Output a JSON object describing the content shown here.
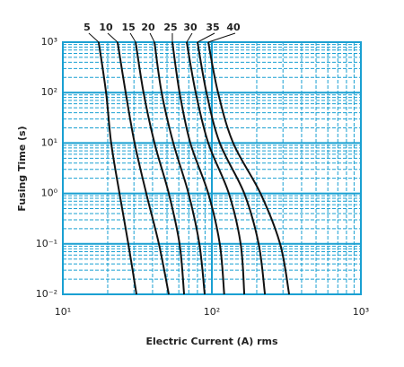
{
  "chart_data": {
    "type": "line",
    "x_label": "Electric Current (A) rms",
    "y_label": "Fusing Time (s)",
    "log_x": true,
    "log_y": true,
    "grid": true,
    "minor_grid": true,
    "grid_color": "#1aa0d2",
    "xlim": [
      10,
      1000
    ],
    "ylim": [
      0.01,
      1000
    ],
    "xticks": [
      {
        "value": 10,
        "label": "10¹"
      },
      {
        "value": 100,
        "label": "10²"
      },
      {
        "value": 1000,
        "label": "10³"
      }
    ],
    "yticks": [
      {
        "value": 0.01,
        "label": "10⁻²"
      },
      {
        "value": 0.1,
        "label": "10⁻¹"
      },
      {
        "value": 1,
        "label": "10⁰"
      },
      {
        "value": 10,
        "label": "10¹"
      },
      {
        "value": 100,
        "label": "10²"
      },
      {
        "value": 1000,
        "label": "10³"
      }
    ],
    "series": [
      {
        "name": "5",
        "color": "#111111",
        "x": [
          17.4,
          19.5,
          21.1,
          24.0,
          27.5,
          31.2
        ],
        "values": [
          1000,
          100,
          10,
          1,
          0.1,
          0.01
        ]
      },
      {
        "name": "10",
        "color": "#111111",
        "x": [
          23.3,
          26.4,
          30.3,
          36.3,
          44.1,
          51.4
        ],
        "values": [
          1000,
          100,
          10,
          1,
          0.1,
          0.01
        ]
      },
      {
        "name": "15",
        "color": "#111111",
        "x": [
          30.8,
          34.8,
          41.2,
          51.4,
          60.7,
          65.1
        ],
        "values": [
          1000,
          100,
          10,
          1,
          0.1,
          0.01
        ]
      },
      {
        "name": "20",
        "color": "#111111",
        "x": [
          41.2,
          46.0,
          55.1,
          69.7,
          82.4,
          89.5
        ],
        "values": [
          1000,
          100,
          10,
          1,
          0.1,
          0.01
        ]
      },
      {
        "name": "25",
        "color": "#111111",
        "x": [
          54.3,
          60.7,
          71.7,
          94.6,
          113,
          121
        ],
        "values": [
          1000,
          100,
          10,
          1,
          0.1,
          0.01
        ]
      },
      {
        "name": "30",
        "color": "#111111",
        "x": [
          67.8,
          77.9,
          94.6,
          130,
          156,
          165
        ],
        "values": [
          1000,
          100,
          10,
          1,
          0.1,
          0.01
        ]
      },
      {
        "name": "35",
        "color": "#111111",
        "x": [
          80.1,
          92.0,
          113,
          165,
          206,
          227
        ],
        "values": [
          1000,
          100,
          10,
          1,
          0.1,
          0.01
        ]
      },
      {
        "name": "40",
        "color": "#111111",
        "x": [
          94.6,
          110,
          139,
          212,
          287,
          330
        ],
        "values": [
          1000,
          100,
          10,
          1,
          0.1,
          0.01
        ]
      }
    ]
  }
}
